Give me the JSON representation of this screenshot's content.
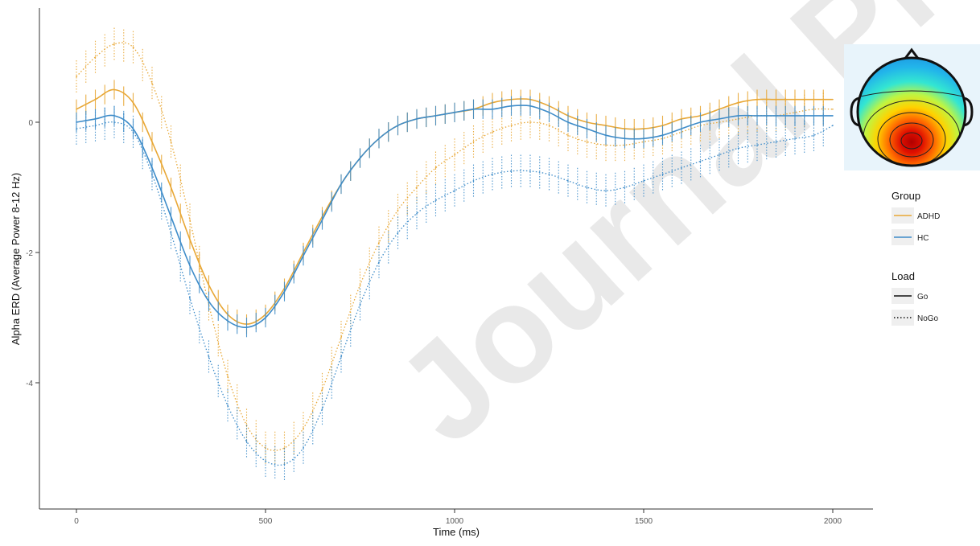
{
  "watermark": "Journal Pre-proof",
  "chart_data": {
    "type": "line",
    "xlabel": "Time (ms)",
    "ylabel": "Alpha ERD (Average Power 8-12 Hz)",
    "xlim": [
      -100,
      2100
    ],
    "ylim": [
      -5.8,
      2.1
    ],
    "x_ticks": [
      0,
      500,
      1000,
      1500,
      2000
    ],
    "y_ticks": [
      -4,
      -2,
      0
    ],
    "grid": false,
    "error_bars": true,
    "legend_position": "right",
    "legends": [
      {
        "title": "Group",
        "entries": [
          {
            "label": "ADHD",
            "color": "#E8A735"
          },
          {
            "label": "HC",
            "color": "#3E8CC9"
          }
        ]
      },
      {
        "title": "Load",
        "entries": [
          {
            "label": "Go",
            "linestyle": "solid"
          },
          {
            "label": "NoGo",
            "linestyle": "dotted"
          }
        ]
      }
    ],
    "inset": "scalp topography map (alpha power, posterior maximum)",
    "series": [
      {
        "group": "ADHD",
        "load": "Go",
        "color": "#E8A735",
        "linestyle": "solid",
        "x": [
          0,
          50,
          100,
          150,
          200,
          250,
          300,
          350,
          400,
          450,
          500,
          550,
          600,
          650,
          700,
          750,
          800,
          850,
          900,
          950,
          1000,
          1050,
          1100,
          1150,
          1200,
          1250,
          1300,
          1350,
          1400,
          1450,
          1500,
          1550,
          1600,
          1650,
          1700,
          1750,
          1800,
          1850,
          1900,
          1950,
          2000
        ],
        "y": [
          0.2,
          0.35,
          0.5,
          0.3,
          -0.3,
          -1.0,
          -1.8,
          -2.5,
          -2.95,
          -3.1,
          -2.95,
          -2.55,
          -2.0,
          -1.45,
          -0.95,
          -0.55,
          -0.25,
          -0.05,
          0.05,
          0.1,
          0.15,
          0.2,
          0.3,
          0.35,
          0.35,
          0.25,
          0.1,
          0.0,
          -0.05,
          -0.1,
          -0.1,
          -0.05,
          0.05,
          0.1,
          0.2,
          0.3,
          0.35,
          0.35,
          0.35,
          0.35,
          0.35
        ],
        "error": 0.15
      },
      {
        "group": "HC",
        "load": "Go",
        "color": "#3E8CC9",
        "linestyle": "solid",
        "x": [
          0,
          50,
          100,
          150,
          200,
          250,
          300,
          350,
          400,
          450,
          500,
          550,
          600,
          650,
          700,
          750,
          800,
          850,
          900,
          950,
          1000,
          1050,
          1100,
          1150,
          1200,
          1250,
          1300,
          1350,
          1400,
          1450,
          1500,
          1550,
          1600,
          1650,
          1700,
          1750,
          1800,
          1850,
          1900,
          1950,
          2000
        ],
        "y": [
          0.0,
          0.05,
          0.1,
          -0.1,
          -0.7,
          -1.45,
          -2.2,
          -2.75,
          -3.05,
          -3.15,
          -3.0,
          -2.6,
          -2.05,
          -1.5,
          -0.95,
          -0.55,
          -0.25,
          -0.05,
          0.05,
          0.1,
          0.15,
          0.2,
          0.2,
          0.25,
          0.25,
          0.15,
          0.0,
          -0.1,
          -0.2,
          -0.25,
          -0.25,
          -0.2,
          -0.1,
          0.0,
          0.05,
          0.1,
          0.1,
          0.1,
          0.1,
          0.1,
          0.1
        ],
        "error": 0.15
      },
      {
        "group": "ADHD",
        "load": "NoGo",
        "color": "#E8A735",
        "linestyle": "dotted",
        "x": [
          0,
          50,
          100,
          150,
          200,
          250,
          300,
          350,
          400,
          450,
          500,
          550,
          600,
          650,
          700,
          750,
          800,
          850,
          900,
          950,
          1000,
          1050,
          1100,
          1150,
          1200,
          1250,
          1300,
          1350,
          1400,
          1450,
          1500,
          1550,
          1600,
          1650,
          1700,
          1750,
          1800,
          1850,
          1900,
          1950,
          2000
        ],
        "y": [
          0.7,
          1.0,
          1.2,
          1.15,
          0.6,
          -0.3,
          -1.5,
          -2.8,
          -3.9,
          -4.65,
          -5.0,
          -5.0,
          -4.7,
          -4.1,
          -3.3,
          -2.5,
          -1.85,
          -1.35,
          -1.0,
          -0.7,
          -0.5,
          -0.3,
          -0.15,
          -0.05,
          0.0,
          -0.05,
          -0.2,
          -0.3,
          -0.35,
          -0.35,
          -0.3,
          -0.25,
          -0.15,
          -0.05,
          0.0,
          0.05,
          0.1,
          0.1,
          0.15,
          0.2,
          0.2
        ],
        "error": 0.25
      },
      {
        "group": "HC",
        "load": "NoGo",
        "color": "#3E8CC9",
        "linestyle": "dotted",
        "x": [
          0,
          50,
          100,
          150,
          200,
          250,
          300,
          350,
          400,
          450,
          500,
          550,
          600,
          650,
          700,
          750,
          800,
          850,
          900,
          950,
          1000,
          1050,
          1100,
          1150,
          1200,
          1250,
          1300,
          1350,
          1400,
          1450,
          1500,
          1550,
          1600,
          1650,
          1700,
          1750,
          1800,
          1850,
          1900,
          1950,
          2000
        ],
        "y": [
          -0.1,
          -0.05,
          0.0,
          -0.15,
          -0.8,
          -1.7,
          -2.7,
          -3.6,
          -4.35,
          -4.9,
          -5.2,
          -5.25,
          -5.0,
          -4.4,
          -3.6,
          -2.8,
          -2.15,
          -1.7,
          -1.4,
          -1.2,
          -1.05,
          -0.9,
          -0.8,
          -0.75,
          -0.75,
          -0.8,
          -0.9,
          -1.0,
          -1.05,
          -1.0,
          -0.9,
          -0.8,
          -0.7,
          -0.6,
          -0.5,
          -0.4,
          -0.35,
          -0.3,
          -0.25,
          -0.2,
          -0.05
        ],
        "error": 0.25
      }
    ]
  }
}
